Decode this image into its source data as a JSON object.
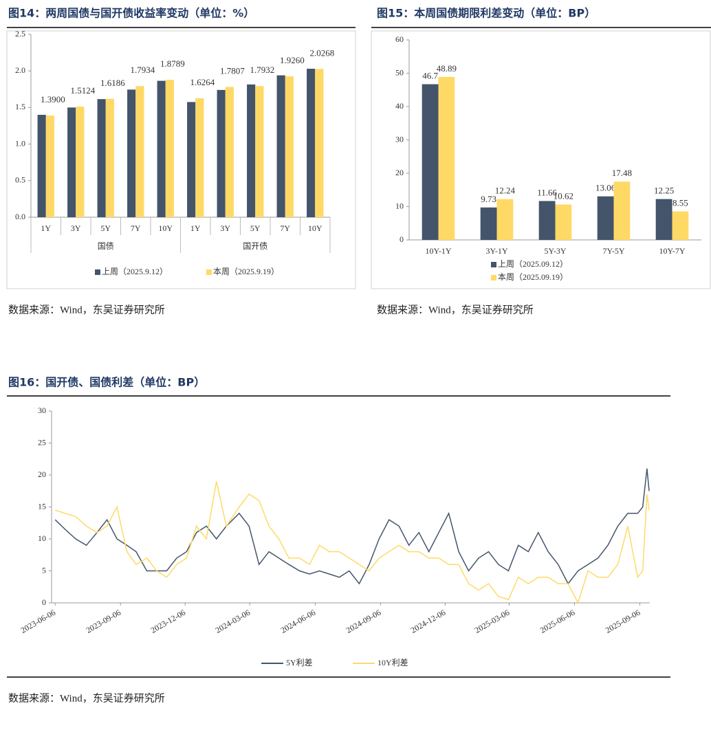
{
  "chart_data": [
    {
      "type": "bar",
      "title": "图14：两周国债与国开债收益率变动（单位：%）",
      "categories": [
        "1Y",
        "3Y",
        "5Y",
        "7Y",
        "10Y",
        "1Y",
        "3Y",
        "5Y",
        "7Y",
        "10Y"
      ],
      "groups": [
        "国债",
        "国开债"
      ],
      "series": [
        {
          "name": "上周（2025.9.12）",
          "color": "#44546a",
          "values": [
            1.4,
            1.5,
            1.615,
            1.745,
            1.865,
            1.575,
            1.74,
            1.815,
            1.94,
            2.03
          ]
        },
        {
          "name": "本周（2025.9.19）",
          "color": "#ffd966",
          "values": [
            1.39,
            1.5124,
            1.6186,
            1.7934,
            1.8789,
            1.6264,
            1.7807,
            1.7932,
            1.926,
            2.0268
          ],
          "value_labels": [
            "1.3900",
            "1.5124",
            "1.6186",
            "1.7934",
            "1.8789",
            "1.6264",
            "1.7807",
            "1.7932",
            "1.9260",
            "2.0268"
          ]
        }
      ],
      "ylim": [
        0,
        2.5
      ],
      "yticks": [
        {
          "value": 0,
          "label": "0.0"
        },
        0.5,
        {
          "value": 1,
          "label": "1.0"
        },
        1.5,
        {
          "value": 2,
          "label": "2.0"
        },
        2.5
      ],
      "legend": "bottom",
      "source": "数据来源：Wind，东吴证券研究所"
    },
    {
      "type": "bar",
      "title": "图15：本周国债期限利差变动（单位：BP）",
      "categories": [
        "10Y-1Y",
        "3Y-1Y",
        "5Y-3Y",
        "7Y-5Y",
        "10Y-7Y"
      ],
      "series": [
        {
          "name": "上周（2025.09.12）",
          "color": "#44546a",
          "values": [
            46.7,
            9.73,
            11.66,
            13.06,
            12.25
          ],
          "data_labels": true
        },
        {
          "name": "本周（2025.09.19）",
          "color": "#ffd966",
          "values": [
            48.89,
            12.24,
            10.62,
            17.48,
            8.55
          ],
          "data_labels": true
        }
      ],
      "ylim": [
        0,
        60
      ],
      "yticks": [
        0,
        10,
        20,
        30,
        40,
        50,
        60
      ],
      "legend": "bottom",
      "source": "数据来源：Wind，东吴证券研究所"
    },
    {
      "type": "line",
      "title": "图16：国开债、国债利差（单位：BP）",
      "x": [
        "2023-06-06",
        "2023-06-20",
        "2023-07-05",
        "2023-07-20",
        "2023-08-04",
        "2023-08-18",
        "2023-09-01",
        "2023-09-15",
        "2023-09-28",
        "2023-10-13",
        "2023-10-27",
        "2023-11-10",
        "2023-11-24",
        "2023-12-08",
        "2023-12-22",
        "2024-01-05",
        "2024-01-19",
        "2024-02-02",
        "2024-02-20",
        "2024-03-05",
        "2024-03-19",
        "2024-04-02",
        "2024-04-16",
        "2024-04-30",
        "2024-05-15",
        "2024-05-29",
        "2024-06-12",
        "2024-06-26",
        "2024-07-10",
        "2024-07-24",
        "2024-08-07",
        "2024-08-21",
        "2024-09-04",
        "2024-09-18",
        "2024-10-02",
        "2024-10-16",
        "2024-10-30",
        "2024-11-13",
        "2024-11-27",
        "2024-12-11",
        "2024-12-25",
        "2025-01-08",
        "2025-01-22",
        "2025-02-05",
        "2025-02-19",
        "2025-03-05",
        "2025-03-19",
        "2025-04-02",
        "2025-04-16",
        "2025-04-30",
        "2025-05-14",
        "2025-05-28",
        "2025-06-11",
        "2025-06-25",
        "2025-07-09",
        "2025-07-23",
        "2025-08-06",
        "2025-08-20",
        "2025-09-03",
        "2025-09-10",
        "2025-09-16",
        "2025-09-19"
      ],
      "series": [
        {
          "name": "5Y利差",
          "color": "#44546a",
          "values": [
            13,
            11.5,
            10,
            9,
            11,
            13,
            10,
            9,
            8,
            5,
            5,
            5,
            7,
            8,
            11,
            12,
            10,
            12,
            14,
            12,
            6,
            8,
            7,
            6,
            5,
            4.5,
            5,
            4.5,
            4,
            5,
            3,
            6,
            10,
            13,
            12,
            9,
            11,
            8,
            11,
            14,
            8,
            5,
            7,
            8,
            6,
            5,
            9,
            8,
            11,
            8,
            6,
            3,
            5,
            6,
            7,
            9,
            12,
            14,
            14,
            15,
            21,
            17.5
          ]
        },
        {
          "name": "10Y利差",
          "color": "#ffd966",
          "values": [
            14.5,
            14,
            13.5,
            12,
            11,
            12,
            15,
            8,
            6,
            7,
            5,
            4,
            6,
            7,
            12,
            10,
            19,
            12,
            15,
            17,
            16,
            12,
            10,
            7,
            7,
            6,
            9,
            8,
            8,
            7,
            6,
            5,
            7,
            8,
            9,
            8,
            8,
            7,
            7,
            6,
            6,
            3,
            2,
            3,
            1,
            0.5,
            4,
            3,
            4,
            4,
            3,
            3,
            0,
            5,
            4,
            4,
            6,
            12,
            4,
            5,
            17,
            14.5
          ]
        }
      ],
      "xlim": [
        "2023-06-01",
        "2025-09-20"
      ],
      "xticks": [
        "2023-06-06",
        "2023-09-06",
        "2023-12-06",
        "2024-03-06",
        "2024-06-06",
        "2024-09-06",
        "2024-12-06",
        "2025-03-06",
        "2025-06-06",
        "2025-09-06"
      ],
      "ylim": [
        0,
        30
      ],
      "yticks": [
        0,
        5,
        10,
        15,
        20,
        25,
        30
      ],
      "legend": "bottom",
      "source": "数据来源：Wind，东吴证券研究所"
    }
  ]
}
